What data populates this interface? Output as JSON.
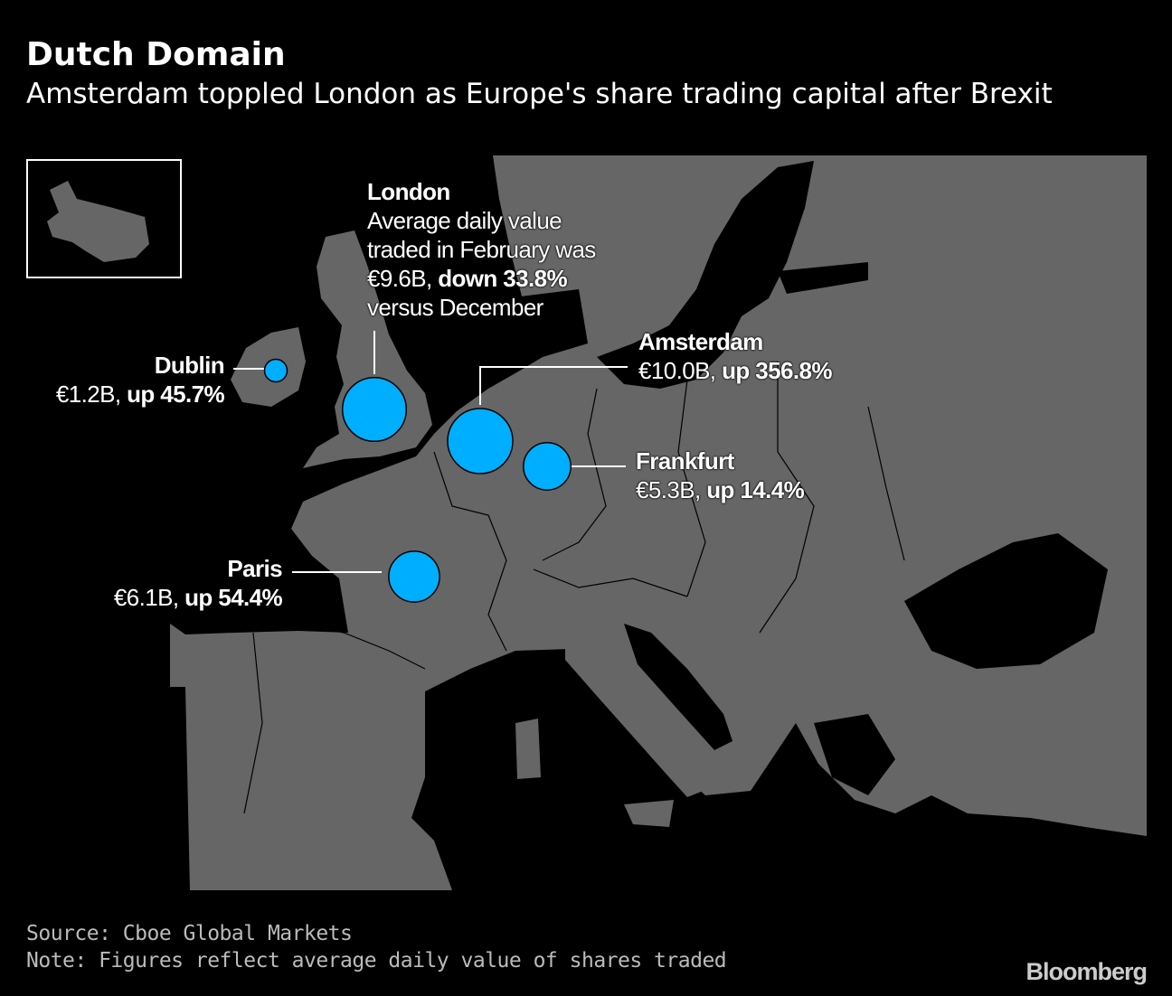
{
  "title": "Dutch Domain",
  "subtitle": "Amsterdam toppled London as Europe's share trading capital after Brexit",
  "colors": {
    "land": "#666666",
    "sea": "#000000",
    "bubble": "#00aeff"
  },
  "cities": {
    "london": {
      "name": "London",
      "l1": "Average daily value",
      "l2": "traded in February was",
      "value": "€9.6B,",
      "change": "down 33.8%",
      "l4": "versus December",
      "value_b": 9.6
    },
    "dublin": {
      "name": "Dublin",
      "value": "€1.2B,",
      "change": "up 45.7%",
      "value_b": 1.2
    },
    "amsterdam": {
      "name": "Amsterdam",
      "value": "€10.0B,",
      "change": "up 356.8%",
      "value_b": 10.0
    },
    "frankfurt": {
      "name": "Frankfurt",
      "value": "€5.3B,",
      "change": "up 14.4%",
      "value_b": 5.3
    },
    "paris": {
      "name": "Paris",
      "value": "€6.1B,",
      "change": "up 54.4%",
      "value_b": 6.1
    }
  },
  "source": "Source: Cboe Global Markets",
  "note": "Note: Figures reflect average daily value of shares traded",
  "logo": "Bloomberg"
}
